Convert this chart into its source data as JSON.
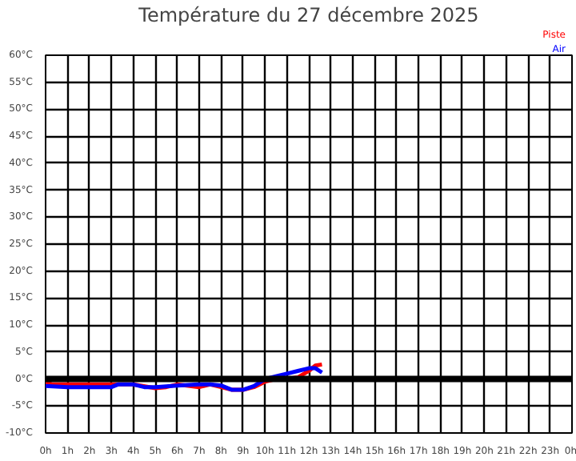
{
  "chart_data": {
    "type": "line",
    "title": "Température du 27 décembre 2025",
    "xlim": [
      "2025-12-27T00:00",
      "2025-12-28T00:00"
    ],
    "ylim": [
      -10,
      60
    ],
    "xticks": [
      {
        "value": "2025-12-27T00:00",
        "label": "0h"
      },
      {
        "value": "2025-12-27T01:00",
        "label": "1h"
      },
      {
        "value": "2025-12-27T02:00",
        "label": "2h"
      },
      {
        "value": "2025-12-27T03:00",
        "label": "3h"
      },
      {
        "value": "2025-12-27T04:00",
        "label": "4h"
      },
      {
        "value": "2025-12-27T05:00",
        "label": "5h"
      },
      {
        "value": "2025-12-27T06:00",
        "label": "6h"
      },
      {
        "value": "2025-12-27T07:00",
        "label": "7h"
      },
      {
        "value": "2025-12-27T08:00",
        "label": "8h"
      },
      {
        "value": "2025-12-27T09:00",
        "label": "9h"
      },
      {
        "value": "2025-12-27T10:00",
        "label": "10h"
      },
      {
        "value": "2025-12-27T11:00",
        "label": "11h"
      },
      {
        "value": "2025-12-27T12:00",
        "label": "12h"
      },
      {
        "value": "2025-12-27T13:00",
        "label": "13h"
      },
      {
        "value": "2025-12-27T14:00",
        "label": "14h"
      },
      {
        "value": "2025-12-27T15:00",
        "label": "15h"
      },
      {
        "value": "2025-12-27T16:00",
        "label": "16h"
      },
      {
        "value": "2025-12-27T17:00",
        "label": "17h"
      },
      {
        "value": "2025-12-27T18:00",
        "label": "18h"
      },
      {
        "value": "2025-12-27T19:00",
        "label": "19h"
      },
      {
        "value": "2025-12-27T20:00",
        "label": "20h"
      },
      {
        "value": "2025-12-27T21:00",
        "label": "21h"
      },
      {
        "value": "2025-12-27T22:00",
        "label": "22h"
      },
      {
        "value": "2025-12-27T23:00",
        "label": "23h"
      },
      {
        "value": "2025-12-28T00:00",
        "label": "0h"
      }
    ],
    "yticks": [
      {
        "value": -10,
        "label": "-10°C"
      },
      {
        "value": -5,
        "label": "-5°C"
      },
      {
        "value": 0,
        "label": "0°C"
      },
      {
        "value": 5,
        "label": "5°C"
      },
      {
        "value": 10,
        "label": "10°C"
      },
      {
        "value": 15,
        "label": "15°C"
      },
      {
        "value": 20,
        "label": "20°C"
      },
      {
        "value": 25,
        "label": "25°C"
      },
      {
        "value": 30,
        "label": "30°C"
      },
      {
        "value": 35,
        "label": "35°C"
      },
      {
        "value": 40,
        "label": "40°C"
      },
      {
        "value": 45,
        "label": "45°C"
      },
      {
        "value": 50,
        "label": "50°C"
      },
      {
        "value": 55,
        "label": "55°C"
      },
      {
        "value": 60,
        "label": "60°C"
      }
    ],
    "grid": true,
    "ref_lines": [
      {
        "axis": "y",
        "value": 0,
        "color": "#000000"
      }
    ],
    "series": [
      {
        "name": "Piste",
        "color": "#ff0000",
        "x": [
          "2025-12-27T00:00",
          "2025-12-27T00:18",
          "2025-12-27T01:00",
          "2025-12-27T02:00",
          "2025-12-27T03:00",
          "2025-12-27T04:00",
          "2025-12-27T05:00",
          "2025-12-27T05:30",
          "2025-12-27T06:00",
          "2025-12-27T07:00",
          "2025-12-27T07:30",
          "2025-12-27T08:00",
          "2025-12-27T08:30",
          "2025-12-27T09:00",
          "2025-12-27T09:30",
          "2025-12-27T10:00",
          "2025-12-27T10:30",
          "2025-12-27T11:00",
          "2025-12-27T11:30",
          "2025-12-27T12:00",
          "2025-12-27T12:18",
          "2025-12-27T12:36"
        ],
        "values": [
          -0.5,
          -1,
          -1,
          -1,
          -1,
          -1,
          -1.7,
          -1.5,
          -1,
          -1.5,
          -1,
          -1.5,
          -2,
          -2,
          -1.5,
          -0.5,
          0,
          0,
          0.3,
          1.5,
          2.5,
          2.7
        ]
      },
      {
        "name": "Air",
        "color": "#0000ff",
        "x": [
          "2025-12-27T00:00",
          "2025-12-27T01:00",
          "2025-12-27T02:00",
          "2025-12-27T03:00",
          "2025-12-27T03:18",
          "2025-12-27T04:00",
          "2025-12-27T04:30",
          "2025-12-27T05:00",
          "2025-12-27T06:00",
          "2025-12-27T07:00",
          "2025-12-27T07:30",
          "2025-12-27T08:00",
          "2025-12-27T08:30",
          "2025-12-27T09:00",
          "2025-12-27T09:30",
          "2025-12-27T10:00",
          "2025-12-27T10:30",
          "2025-12-27T11:00",
          "2025-12-27T11:30",
          "2025-12-27T12:00",
          "2025-12-27T12:18",
          "2025-12-27T12:36"
        ],
        "values": [
          -1.3,
          -1.5,
          -1.5,
          -1.5,
          -1,
          -1,
          -1.5,
          -1.5,
          -1.2,
          -1,
          -1,
          -1.2,
          -2,
          -2,
          -1.3,
          0,
          0.5,
          1,
          1.5,
          2,
          2,
          1.2
        ]
      }
    ]
  }
}
